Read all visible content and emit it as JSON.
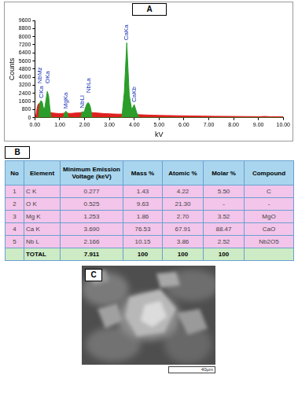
{
  "panel_labels": [
    "A",
    "B",
    "C"
  ],
  "chart_data": {
    "type": "area",
    "x_label": "kV",
    "y_label": "Counts",
    "x": [
      0,
      0.05,
      0.1,
      0.15,
      0.2,
      0.25,
      0.3,
      0.35,
      0.4,
      0.45,
      0.5,
      0.55,
      0.6,
      0.65,
      0.7,
      0.75,
      0.8,
      0.85,
      0.9,
      0.95,
      1,
      1.05,
      1.1,
      1.15,
      1.2,
      1.25,
      1.3,
      1.35,
      1.4,
      1.45,
      1.5,
      1.55,
      1.6,
      1.65,
      1.7,
      1.75,
      1.8,
      1.85,
      1.9,
      1.95,
      2,
      2.05,
      2.1,
      2.15,
      2.2,
      2.25,
      2.3,
      2.35,
      2.4,
      2.5,
      2.6,
      2.7,
      2.8,
      2.9,
      3,
      3.1,
      3.2,
      3.3,
      3.4,
      3.5,
      3.6,
      3.7,
      3.8,
      3.9,
      4,
      4.1,
      4.2,
      4.3,
      4.5,
      4.75,
      5,
      5.25,
      5.5,
      5.75,
      6,
      6.25,
      6.5,
      6.75,
      7,
      7.25,
      7.5,
      7.75,
      8,
      8.25,
      8.5,
      8.75,
      9,
      9.25,
      9.5,
      9.75,
      10
    ],
    "series": [
      {
        "color": "#e02020",
        "values": [
          0,
          300,
          1100,
          1400,
          1300,
          1200,
          1000,
          800,
          700,
          650,
          650,
          600,
          550,
          500,
          480,
          460,
          450,
          440,
          430,
          420,
          420,
          420,
          430,
          440,
          450,
          460,
          450,
          440,
          430,
          430,
          440,
          450,
          460,
          470,
          480,
          490,
          500,
          510,
          520,
          530,
          540,
          540,
          540,
          540,
          530,
          520,
          510,
          500,
          490,
          470,
          450,
          430,
          410,
          400,
          390,
          380,
          370,
          360,
          360,
          360,
          370,
          380,
          370,
          350,
          340,
          320,
          300,
          290,
          270,
          250,
          230,
          220,
          210,
          200,
          190,
          180,
          170,
          160,
          150,
          145,
          140,
          135,
          130,
          125,
          120,
          115,
          110,
          130,
          105,
          100,
          95
        ]
      },
      {
        "color": "#2a9d2a",
        "values": [
          0,
          0,
          0,
          0,
          1500,
          1700,
          1500,
          900,
          1000,
          1800,
          2600,
          2200,
          1000,
          0,
          0,
          0,
          0,
          0,
          0,
          0,
          0,
          0,
          0,
          0,
          500,
          650,
          500,
          0,
          0,
          0,
          0,
          0,
          0,
          0,
          0,
          0,
          0,
          0,
          600,
          500,
          700,
          1100,
          1400,
          1500,
          1300,
          900,
          0,
          0,
          0,
          0,
          0,
          0,
          0,
          0,
          0,
          0,
          0,
          0,
          0,
          0,
          2500,
          7400,
          2200,
          800,
          1300,
          500,
          0,
          0,
          0,
          0,
          0,
          0,
          0,
          0,
          0,
          0,
          0,
          0,
          0,
          0,
          0,
          0,
          0,
          0,
          0,
          0,
          0,
          0,
          0,
          0,
          0
        ]
      }
    ],
    "xlim": [
      0,
      10
    ],
    "xticks": [
      {
        "value": 0,
        "label": "0.00"
      },
      {
        "value": 1,
        "label": "1.00"
      },
      {
        "value": 2,
        "label": "2.00"
      },
      {
        "value": 3,
        "label": "3.00"
      },
      {
        "value": 4,
        "label": "4.00"
      },
      {
        "value": 5,
        "label": "5.00"
      },
      {
        "value": 6,
        "label": "6.00"
      },
      {
        "value": 7,
        "label": "7.00"
      },
      {
        "value": 8,
        "label": "8.00"
      },
      {
        "value": 9,
        "label": "9.00"
      },
      {
        "value": 10,
        "label": "10.00"
      }
    ],
    "ylim": [
      0,
      9600
    ],
    "yticks": [
      0,
      800,
      1600,
      2400,
      3200,
      4000,
      4800,
      5600,
      6400,
      7200,
      8000,
      8800,
      9600
    ],
    "grid": false,
    "annotations": [
      {
        "text": "CKa",
        "x": 0.277
      },
      {
        "text": "NbMz",
        "x": 0.2
      },
      {
        "text": "OKa",
        "x": 0.525
      },
      {
        "text": "MgKa",
        "x": 1.253
      },
      {
        "text": "NbLl",
        "x": 1.902
      },
      {
        "text": "NbLa",
        "x": 2.166
      },
      {
        "text": "CaKa",
        "x": 3.69
      },
      {
        "text": "CaKb",
        "x": 4.012
      }
    ]
  },
  "table": {
    "columns": [
      "No",
      "Element",
      "Minimum Emission Voltage (keV)",
      "Mass %",
      "Atomic %",
      "Molar %",
      "Compound"
    ],
    "rows": [
      [
        "1",
        "C K",
        "0.277",
        "1.43",
        "4.22",
        "5.50",
        "C"
      ],
      [
        "2",
        "O K",
        "0.525",
        "9.63",
        "21.30",
        "-",
        "-"
      ],
      [
        "3",
        "Mg K",
        "1.253",
        "1.86",
        "2.70",
        "3.52",
        "MgO"
      ],
      [
        "4",
        "Ca K",
        "3.690",
        "76.53",
        "67.91",
        "88.47",
        "CaO"
      ],
      [
        "5",
        "Nb L",
        "2.166",
        "10.15",
        "3.86",
        "2.52",
        "Nb2O5"
      ]
    ],
    "total": [
      null,
      "TOTAL",
      "7.911",
      "100",
      "100",
      "100",
      null
    ]
  },
  "image": {
    "scale_bar_label": "40μm"
  }
}
